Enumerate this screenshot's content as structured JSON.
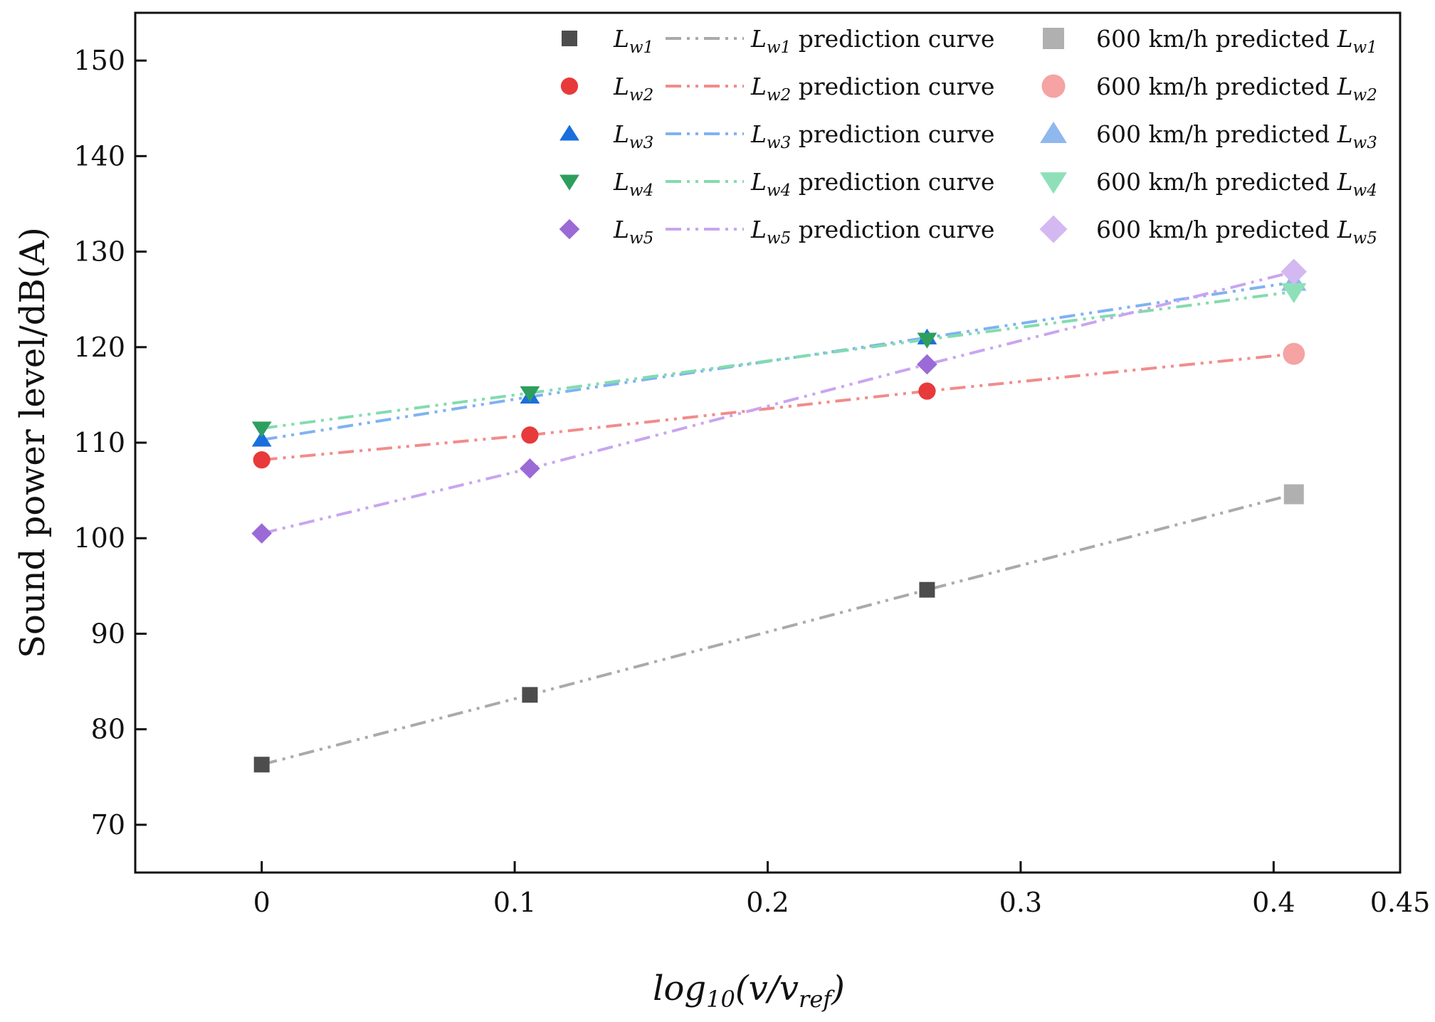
{
  "chart_data": {
    "type": "scatter",
    "xlabel_parts": {
      "fn": "log",
      "sub": "10",
      "open": "(v/v",
      "ref": "ref",
      "close": ")"
    },
    "xlabel": "log10(v/vref)",
    "ylabel": "Sound power level/dB(A)",
    "xlim": [
      -0.05,
      0.45
    ],
    "ylim": [
      65,
      155
    ],
    "xticks": [
      "0",
      "0.1",
      "0.2",
      "0.3",
      "0.4",
      "0.45"
    ],
    "xtick_values": [
      0,
      0.1,
      0.2,
      0.3,
      0.4,
      0.45
    ],
    "yticks": [
      "70",
      "80",
      "90",
      "100",
      "110",
      "120",
      "130",
      "140",
      "150"
    ],
    "ytick_values": [
      70,
      80,
      90,
      100,
      110,
      120,
      130,
      140,
      150
    ],
    "x": [
      0,
      0.106,
      0.263,
      0.408
    ],
    "series": [
      {
        "name": "Lw1",
        "sub": "w1",
        "values": [
          76.3,
          83.6,
          94.6,
          104.6
        ],
        "color": "#4d4d4d",
        "line_color": "#aaaaaa",
        "pred_color": "#b0b0b0",
        "marker": "square"
      },
      {
        "name": "Lw2",
        "sub": "w2",
        "values": [
          108.2,
          110.8,
          115.4,
          119.3
        ],
        "color": "#e83a3a",
        "line_color": "#f28b8b",
        "pred_color": "#f5a3a3",
        "marker": "circle"
      },
      {
        "name": "Lw3",
        "sub": "w3",
        "values": [
          110.3,
          114.8,
          121.0,
          126.8
        ],
        "color": "#1a6fdc",
        "line_color": "#7fb2f2",
        "pred_color": "#8fb8ef",
        "marker": "triangle-up"
      },
      {
        "name": "Lw4",
        "sub": "w4",
        "values": [
          111.5,
          115.2,
          120.8,
          125.8
        ],
        "color": "#2e9e5e",
        "line_color": "#82dcae",
        "pred_color": "#8fe0b8",
        "marker": "triangle-down"
      },
      {
        "name": "Lw5",
        "sub": "w5",
        "values": [
          100.5,
          107.3,
          118.2,
          127.9
        ],
        "color": "#9b6ad6",
        "line_color": "#c9a5f0",
        "pred_color": "#d4b8f2",
        "marker": "diamond"
      }
    ],
    "legend": {
      "position": "top-right",
      "measured_prefix": "L",
      "curve_suffix": "prediction curve",
      "predicted_prefix": "600 km/h predicted"
    }
  }
}
